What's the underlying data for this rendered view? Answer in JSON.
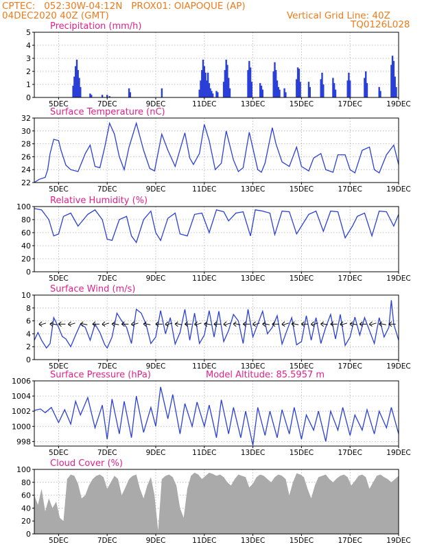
{
  "header": {
    "left1": "CPTEC:   052:30W-04:12N   PROX01: OIAPOQUE (AP)",
    "left2": "04DEC2020 40Z (GMT)",
    "right1": "Vertical Grid Line: 40Z",
    "right2": "TQ0126L028"
  },
  "colors": {
    "header": "#f07a1a",
    "title": "#e0218a",
    "series": "#2a3fd8",
    "cloud": "#aaaaaa",
    "grid": "#b0b0b0",
    "axis": "#000000"
  },
  "x_ticks": [
    "5DEC",
    "7DEC",
    "9DEC",
    "11DEC",
    "13DEC",
    "15DEC",
    "17DEC",
    "19DEC"
  ],
  "x_tick_days": [
    5,
    7,
    9,
    11,
    13,
    15,
    17,
    19
  ],
  "x_range_days": [
    4.0,
    19.0
  ],
  "chart_data": [
    {
      "type": "bar",
      "title": "Precipitation (mm/h)",
      "ylim": [
        0,
        5
      ],
      "yticks": [
        0,
        1,
        2,
        3,
        4,
        5
      ],
      "x_unit": "day of December 2020",
      "bars": [
        [
          5.6,
          0.9
        ],
        [
          5.65,
          1.6
        ],
        [
          5.7,
          2.4
        ],
        [
          5.75,
          2.9
        ],
        [
          5.8,
          2.1
        ],
        [
          5.85,
          1.5
        ],
        [
          5.9,
          0.8
        ],
        [
          6.3,
          0.3
        ],
        [
          6.35,
          0.2
        ],
        [
          6.8,
          0.2
        ],
        [
          7.0,
          0.2
        ],
        [
          7.1,
          0.1
        ],
        [
          7.9,
          0.7
        ],
        [
          7.95,
          0.4
        ],
        [
          9.25,
          0.7
        ],
        [
          10.8,
          0.6
        ],
        [
          10.85,
          1.3
        ],
        [
          10.9,
          2.1
        ],
        [
          10.95,
          2.9
        ],
        [
          11.0,
          2.4
        ],
        [
          11.05,
          1.9
        ],
        [
          11.1,
          1.3
        ],
        [
          11.15,
          1.9
        ],
        [
          11.2,
          1.1
        ],
        [
          11.25,
          0.7
        ],
        [
          11.3,
          0.5
        ],
        [
          11.35,
          0.3
        ],
        [
          11.5,
          0.5
        ],
        [
          11.55,
          0.4
        ],
        [
          11.8,
          1.2
        ],
        [
          11.85,
          2.1
        ],
        [
          11.9,
          2.9
        ],
        [
          11.95,
          2.5
        ],
        [
          12.0,
          1.5
        ],
        [
          12.05,
          0.7
        ],
        [
          12.8,
          2.1
        ],
        [
          12.85,
          2.8
        ],
        [
          12.9,
          2.3
        ],
        [
          12.95,
          1.2
        ],
        [
          13.3,
          1.1
        ],
        [
          13.35,
          0.9
        ],
        [
          13.4,
          0.6
        ],
        [
          13.85,
          2.0
        ],
        [
          13.9,
          2.7
        ],
        [
          13.95,
          2.1
        ],
        [
          14.0,
          1.3
        ],
        [
          14.05,
          0.8
        ],
        [
          14.1,
          0.6
        ],
        [
          14.3,
          0.7
        ],
        [
          14.35,
          0.4
        ],
        [
          14.8,
          1.4
        ],
        [
          14.85,
          2.3
        ],
        [
          14.9,
          2.2
        ],
        [
          14.95,
          1.2
        ],
        [
          15.3,
          1.2
        ],
        [
          15.35,
          0.8
        ],
        [
          15.8,
          1.4
        ],
        [
          15.85,
          1.9
        ],
        [
          15.9,
          1.0
        ],
        [
          16.3,
          1.5
        ],
        [
          16.35,
          1.1
        ],
        [
          16.4,
          0.6
        ],
        [
          16.9,
          1.3
        ],
        [
          16.95,
          1.9
        ],
        [
          17.0,
          1.3
        ],
        [
          17.6,
          1.5
        ],
        [
          17.65,
          2.0
        ],
        [
          17.7,
          1.1
        ],
        [
          18.2,
          0.8
        ],
        [
          18.25,
          0.5
        ],
        [
          18.7,
          2.5
        ],
        [
          18.75,
          3.2
        ],
        [
          18.8,
          2.8
        ],
        [
          18.85,
          1.6
        ],
        [
          18.9,
          0.8
        ]
      ]
    },
    {
      "type": "line",
      "title": "Surface Temperature (nC)",
      "ylim": [
        22,
        32
      ],
      "yticks": [
        22,
        24,
        26,
        28,
        30,
        32
      ],
      "x": [
        4.0,
        4.2,
        4.45,
        4.55,
        4.65,
        4.8,
        5.0,
        5.1,
        5.3,
        5.5,
        5.8,
        6.1,
        6.3,
        6.5,
        6.7,
        6.9,
        7.1,
        7.3,
        7.5,
        7.7,
        7.9,
        8.2,
        8.5,
        8.75,
        8.95,
        9.25,
        9.5,
        9.8,
        10.2,
        10.4,
        10.55,
        10.8,
        11.0,
        11.2,
        11.45,
        11.7,
        11.9,
        12.2,
        12.4,
        12.6,
        12.85,
        13.2,
        13.35,
        13.5,
        13.8,
        13.95,
        14.2,
        14.5,
        14.8,
        15.0,
        15.3,
        15.5,
        15.8,
        16.0,
        16.3,
        16.5,
        16.8,
        17.0,
        17.2,
        17.5,
        17.8,
        18.0,
        18.2,
        18.5,
        18.8,
        19.0
      ],
      "y": [
        22.0,
        22.5,
        22.8,
        24.0,
        26.5,
        28.7,
        28.5,
        27.0,
        24.7,
        24.0,
        23.7,
        26.5,
        27.8,
        24.5,
        24.3,
        27.5,
        31.2,
        29.5,
        26.0,
        24.0,
        27.5,
        31.2,
        27.0,
        24.2,
        23.8,
        29.5,
        27.0,
        24.5,
        29.7,
        25.8,
        24.8,
        26.5,
        31.0,
        28.5,
        24.0,
        25.0,
        30.0,
        25.5,
        23.7,
        24.3,
        29.8,
        24.0,
        23.6,
        25.0,
        30.5,
        28.0,
        25.2,
        24.5,
        27.5,
        24.5,
        23.8,
        25.8,
        26.5,
        24.0,
        23.6,
        26.3,
        26.3,
        24.0,
        23.5,
        27.0,
        27.5,
        24.0,
        23.5,
        26.3,
        27.8,
        24.8
      ]
    },
    {
      "type": "line",
      "title": "Relative Humidity (%)",
      "ylim": [
        0,
        100
      ],
      "yticks": [
        0,
        20,
        40,
        60,
        80,
        100
      ],
      "x": [
        4.0,
        4.3,
        4.6,
        4.8,
        5.0,
        5.2,
        5.5,
        5.8,
        6.2,
        6.5,
        6.8,
        7.0,
        7.2,
        7.5,
        7.8,
        8.0,
        8.2,
        8.5,
        8.8,
        9.0,
        9.2,
        9.5,
        9.8,
        10.0,
        10.3,
        10.6,
        10.9,
        11.2,
        11.5,
        11.8,
        12.0,
        12.3,
        12.6,
        12.9,
        13.1,
        13.4,
        13.7,
        13.9,
        14.2,
        14.5,
        14.8,
        15.0,
        15.3,
        15.6,
        15.9,
        16.2,
        16.5,
        16.8,
        17.1,
        17.3,
        17.6,
        17.9,
        18.2,
        18.5,
        18.8,
        19.0
      ],
      "y": [
        97,
        95,
        80,
        55,
        58,
        85,
        90,
        70,
        88,
        95,
        80,
        50,
        48,
        80,
        85,
        55,
        45,
        80,
        93,
        60,
        48,
        82,
        90,
        58,
        55,
        88,
        90,
        60,
        95,
        92,
        78,
        90,
        92,
        55,
        95,
        93,
        90,
        57,
        93,
        92,
        58,
        70,
        88,
        93,
        62,
        93,
        92,
        52,
        70,
        85,
        90,
        55,
        93,
        92,
        70,
        88
      ]
    },
    {
      "type": "line",
      "title": "Surface Wind (m/s)",
      "ylim": [
        0,
        10
      ],
      "yticks": [
        0,
        2,
        4,
        6,
        8,
        10
      ],
      "x": [
        4.0,
        4.15,
        4.3,
        4.5,
        4.65,
        4.8,
        5.0,
        5.15,
        5.3,
        5.5,
        5.7,
        5.9,
        6.1,
        6.3,
        6.5,
        6.7,
        6.9,
        7.0,
        7.2,
        7.4,
        7.6,
        7.8,
        8.0,
        8.2,
        8.4,
        8.6,
        8.8,
        9.0,
        9.2,
        9.4,
        9.6,
        9.8,
        10.0,
        10.2,
        10.4,
        10.6,
        10.8,
        11.0,
        11.2,
        11.4,
        11.6,
        11.8,
        12.0,
        12.2,
        12.4,
        12.6,
        12.8,
        13.0,
        13.2,
        13.4,
        13.6,
        13.8,
        14.0,
        14.2,
        14.4,
        14.6,
        14.8,
        15.0,
        15.2,
        15.4,
        15.6,
        15.8,
        16.0,
        16.2,
        16.4,
        16.6,
        16.8,
        17.0,
        17.2,
        17.4,
        17.6,
        17.8,
        18.0,
        18.2,
        18.4,
        18.6,
        18.7,
        18.8,
        19.0
      ],
      "y": [
        3.0,
        4.2,
        3.0,
        1.8,
        2.5,
        6.5,
        5.0,
        3.6,
        3.2,
        2.0,
        3.8,
        5.5,
        5.0,
        3.0,
        5.5,
        4.2,
        2.3,
        1.8,
        3.5,
        7.2,
        6.0,
        5.0,
        2.5,
        7.8,
        7.2,
        5.5,
        2.5,
        3.5,
        7.6,
        4.0,
        6.5,
        2.4,
        4.2,
        7.8,
        3.0,
        7.2,
        2.5,
        3.8,
        7.6,
        3.5,
        7.5,
        2.8,
        4.5,
        7.0,
        6.0,
        2.5,
        7.8,
        3.5,
        5.5,
        7.5,
        4.0,
        5.0,
        6.8,
        2.4,
        4.5,
        6.5,
        2.3,
        2.8,
        6.8,
        3.0,
        6.5,
        2.5,
        5.0,
        7.0,
        3.2,
        7.0,
        2.2,
        3.5,
        6.6,
        3.8,
        6.5,
        4.5,
        2.5,
        6.5,
        3.5,
        5.0,
        9.2,
        5.5,
        3.0
      ],
      "arrows_x": [
        4.2,
        4.65,
        5.0,
        5.4,
        5.9,
        6.4,
        6.8,
        7.2,
        7.6,
        8.0,
        8.5,
        9.0,
        9.4,
        9.8,
        10.2,
        10.6,
        11.0,
        11.4,
        11.8,
        12.2,
        12.6,
        13.0,
        13.4,
        13.8,
        14.2,
        14.6,
        15.0,
        15.4,
        15.8,
        16.2,
        16.6,
        17.0,
        17.4,
        17.8,
        18.2,
        18.6
      ]
    },
    {
      "type": "line",
      "title": "Surface Pressure (hPa)",
      "annotation": "Model Altitude: 85.5957 m",
      "ylim": [
        997.4,
        1006.0
      ],
      "yticks": [
        998,
        1000,
        1002,
        1004,
        1006
      ],
      "x": [
        4.0,
        4.25,
        4.45,
        4.7,
        5.0,
        5.25,
        5.5,
        5.7,
        5.9,
        6.2,
        6.5,
        6.8,
        7.0,
        7.2,
        7.5,
        7.7,
        8.0,
        8.2,
        8.5,
        8.8,
        9.0,
        9.2,
        9.5,
        9.7,
        10.0,
        10.2,
        10.5,
        10.7,
        11.0,
        11.2,
        11.5,
        11.7,
        12.0,
        12.2,
        12.5,
        12.7,
        13.0,
        13.2,
        13.5,
        13.7,
        14.0,
        14.2,
        14.5,
        14.7,
        15.0,
        15.2,
        15.5,
        15.7,
        16.0,
        16.2,
        16.5,
        16.7,
        17.0,
        17.2,
        17.5,
        17.7,
        18.0,
        18.2,
        18.5,
        18.7,
        19.0
      ],
      "y": [
        1002.1,
        1002.3,
        1001.8,
        1002.5,
        1000.5,
        1002.2,
        1000.3,
        1003.3,
        1001.5,
        1003.8,
        999.8,
        1002.8,
        998.3,
        1003.6,
        999.0,
        1003.3,
        998.5,
        1004.0,
        999.2,
        1002.5,
        1000.0,
        1005.2,
        1001.0,
        1004.2,
        999.0,
        1003.0,
        1000.0,
        1003.2,
        1000.0,
        1002.8,
        998.5,
        1003.5,
        999.0,
        1002.5,
        998.5,
        1002.0,
        997.5,
        1002.5,
        998.8,
        1002.0,
        998.5,
        1002.2,
        999.0,
        1002.5,
        998.3,
        1001.5,
        999.5,
        1002.0,
        998.0,
        1002.0,
        999.5,
        1002.5,
        998.8,
        1001.5,
        999.5,
        1002.2,
        999.0,
        1002.0,
        999.8,
        1002.5,
        999.0
      ]
    },
    {
      "type": "area",
      "title": "Cloud Cover (%)",
      "ylim": [
        0,
        100
      ],
      "yticks": [
        0,
        20,
        40,
        60,
        80,
        100
      ],
      "x": [
        4.0,
        4.15,
        4.3,
        4.45,
        4.6,
        4.75,
        4.9,
        5.05,
        5.2,
        5.35,
        5.5,
        5.65,
        5.8,
        5.95,
        6.1,
        6.25,
        6.4,
        6.55,
        6.7,
        6.85,
        7.0,
        7.15,
        7.3,
        7.45,
        7.6,
        7.75,
        7.9,
        8.05,
        8.2,
        8.35,
        8.5,
        8.65,
        8.8,
        8.95,
        9.1,
        9.25,
        9.4,
        9.55,
        9.7,
        9.85,
        10.0,
        10.15,
        10.3,
        10.45,
        10.6,
        10.75,
        10.9,
        11.05,
        11.2,
        11.35,
        11.5,
        11.65,
        11.8,
        11.95,
        12.1,
        12.25,
        12.4,
        12.55,
        12.7,
        12.85,
        13.0,
        13.15,
        13.3,
        13.45,
        13.6,
        13.75,
        13.9,
        14.05,
        14.2,
        14.35,
        14.5,
        14.65,
        14.8,
        14.95,
        15.1,
        15.25,
        15.4,
        15.55,
        15.7,
        15.85,
        16.0,
        16.15,
        16.3,
        16.45,
        16.6,
        16.75,
        16.9,
        17.05,
        17.2,
        17.35,
        17.5,
        17.65,
        17.8,
        17.95,
        18.1,
        18.25,
        18.4,
        18.55,
        18.7,
        18.85,
        19.0
      ],
      "y": [
        60,
        45,
        70,
        35,
        55,
        40,
        50,
        25,
        20,
        85,
        92,
        90,
        78,
        55,
        60,
        75,
        85,
        90,
        92,
        88,
        70,
        80,
        90,
        85,
        60,
        72,
        85,
        90,
        92,
        70,
        55,
        75,
        88,
        60,
        5,
        85,
        90,
        92,
        88,
        75,
        40,
        25,
        70,
        90,
        95,
        92,
        85,
        90,
        95,
        93,
        90,
        92,
        88,
        80,
        75,
        85,
        92,
        90,
        88,
        72,
        78,
        88,
        92,
        90,
        85,
        80,
        88,
        92,
        90,
        85,
        60,
        80,
        94,
        92,
        88,
        70,
        55,
        75,
        88,
        90,
        92,
        85,
        80,
        86,
        90,
        92,
        88,
        75,
        82,
        90,
        92,
        88,
        70,
        80,
        90,
        92,
        88,
        85,
        80,
        85,
        90
      ]
    }
  ]
}
